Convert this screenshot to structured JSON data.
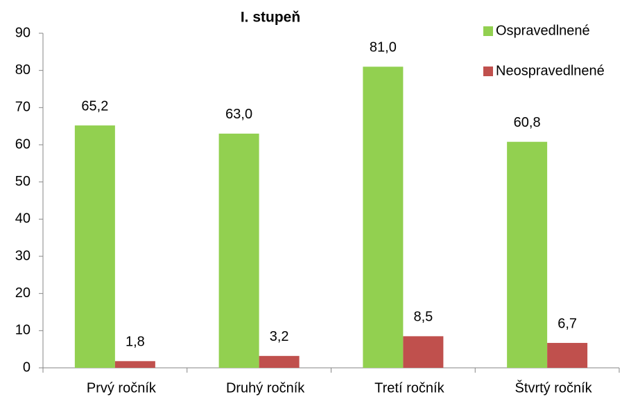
{
  "chart_data": {
    "type": "bar",
    "title": "I. stupeň",
    "categories": [
      "Prvý ročník",
      "Druhý ročník",
      "Tretí ročník",
      "Štvrtý ročník"
    ],
    "series": [
      {
        "name": "Ospravedlnené",
        "color": "#92d050",
        "values": [
          65.2,
          63.0,
          81.0,
          60.8
        ],
        "value_labels": [
          "65,2",
          "63,0",
          "81,0",
          "60,8"
        ]
      },
      {
        "name": "Neospravedlnené",
        "color": "#c0504d",
        "values": [
          1.8,
          3.2,
          8.5,
          6.7
        ],
        "value_labels": [
          "1,8",
          "3,2",
          "8,5",
          "6,7"
        ]
      }
    ],
    "ylim": [
      0,
      90
    ],
    "yticks": [
      0,
      10,
      20,
      30,
      40,
      50,
      60,
      70,
      80,
      90
    ],
    "legend": "top-right"
  }
}
